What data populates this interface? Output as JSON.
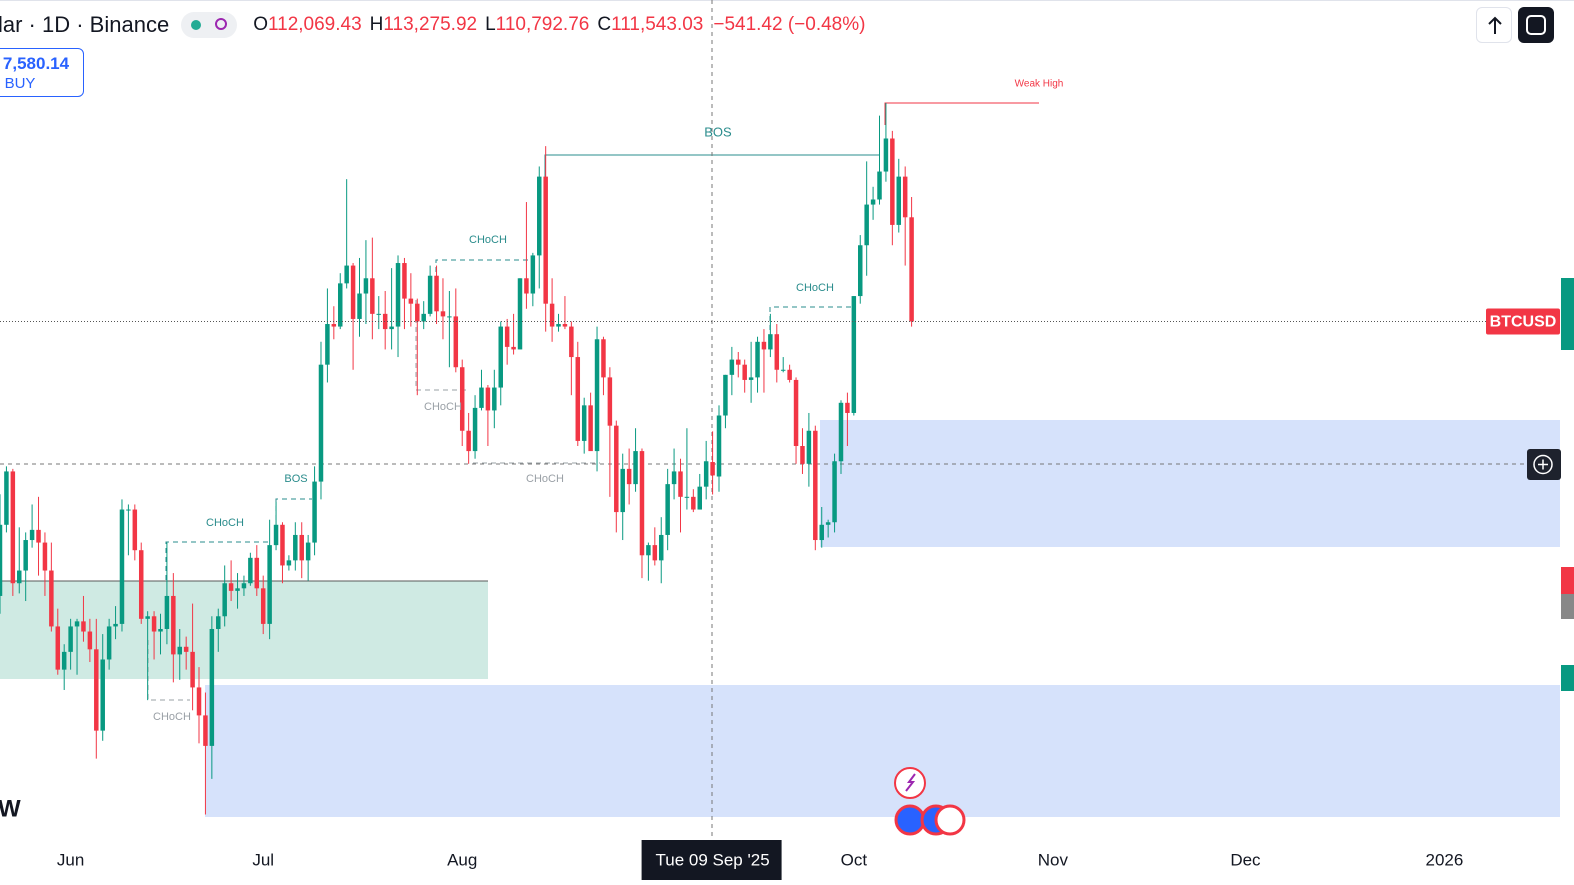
{
  "header": {
    "title": "lar · 1D · Binance",
    "logo": "W",
    "ohlc": [
      {
        "label": "O",
        "value": "112,069.43"
      },
      {
        "label": "H",
        "value": "113,275.92"
      },
      {
        "label": "L",
        "value": "110,792.76"
      },
      {
        "label": "C",
        "value": "111,543.03"
      }
    ],
    "change": "−541.42 (−0.48%)"
  },
  "buy_button": {
    "price": "7,580.14",
    "label": "BUY"
  },
  "chart_data": {
    "type": "candlestick",
    "x": [
      "2025-05-21",
      "2025-05-22",
      "2025-05-23",
      "2025-05-24",
      "2025-05-25",
      "2025-05-26",
      "2025-05-27",
      "2025-05-28",
      "2025-05-29",
      "2025-05-30",
      "2025-05-31",
      "2025-06-01",
      "2025-06-02",
      "2025-06-03",
      "2025-06-04",
      "2025-06-05",
      "2025-06-06",
      "2025-06-07",
      "2025-06-08",
      "2025-06-09",
      "2025-06-10",
      "2025-06-11",
      "2025-06-12",
      "2025-06-13",
      "2025-06-14",
      "2025-06-15",
      "2025-06-16",
      "2025-06-17",
      "2025-06-18",
      "2025-06-19",
      "2025-06-20",
      "2025-06-21",
      "2025-06-22",
      "2025-06-23",
      "2025-06-24",
      "2025-06-25",
      "2025-06-26",
      "2025-06-27",
      "2025-06-28",
      "2025-06-29",
      "2025-06-30",
      "2025-07-01",
      "2025-07-02",
      "2025-07-03",
      "2025-07-04",
      "2025-07-05",
      "2025-07-06",
      "2025-07-07",
      "2025-07-08",
      "2025-07-09",
      "2025-07-10",
      "2025-07-11",
      "2025-07-12",
      "2025-07-13",
      "2025-07-14",
      "2025-07-15",
      "2025-07-16",
      "2025-07-17",
      "2025-07-18",
      "2025-07-19",
      "2025-07-20",
      "2025-07-21",
      "2025-07-22",
      "2025-07-23",
      "2025-07-24",
      "2025-07-25",
      "2025-07-26",
      "2025-07-27",
      "2025-07-28",
      "2025-07-29",
      "2025-07-30",
      "2025-07-31",
      "2025-08-01",
      "2025-08-02",
      "2025-08-03",
      "2025-08-04",
      "2025-08-05",
      "2025-08-06",
      "2025-08-07",
      "2025-08-08",
      "2025-08-09",
      "2025-08-10",
      "2025-08-11",
      "2025-08-12",
      "2025-08-13",
      "2025-08-14",
      "2025-08-15",
      "2025-08-16",
      "2025-08-17",
      "2025-08-18",
      "2025-08-19",
      "2025-08-20",
      "2025-08-21",
      "2025-08-22",
      "2025-08-23",
      "2025-08-24",
      "2025-08-25",
      "2025-08-26",
      "2025-08-27",
      "2025-08-28",
      "2025-08-29",
      "2025-08-30",
      "2025-08-31",
      "2025-09-01",
      "2025-09-02",
      "2025-09-03",
      "2025-09-04",
      "2025-09-05",
      "2025-09-06",
      "2025-09-07",
      "2025-09-08",
      "2025-09-09",
      "2025-09-10",
      "2025-09-11",
      "2025-09-12",
      "2025-09-13",
      "2025-09-14",
      "2025-09-15",
      "2025-09-16",
      "2025-09-17",
      "2025-09-18",
      "2025-09-19",
      "2025-09-20",
      "2025-09-21",
      "2025-09-22",
      "2025-09-23",
      "2025-09-24",
      "2025-09-25",
      "2025-09-26",
      "2025-09-27",
      "2025-09-28",
      "2025-09-29",
      "2025-09-30",
      "2025-10-01",
      "2025-10-02",
      "2025-10-03",
      "2025-10-04",
      "2025-10-05",
      "2025-10-06",
      "2025-10-07",
      "2025-10-08",
      "2025-10-09",
      "2025-10-10"
    ],
    "series": [
      {
        "name": "BTCUSD",
        "up_color": "#089981",
        "down_color": "#f23645",
        "open": [
          106800,
          109600,
          111700,
          107300,
          107800,
          109000,
          109400,
          108900,
          107800,
          105600,
          103900,
          104600,
          105600,
          105800,
          105400,
          104700,
          101500,
          104300,
          105600,
          105700,
          110200,
          110200,
          108600,
          105900,
          106000,
          105400,
          105500,
          106800,
          104500,
          104800,
          104600,
          103200,
          102100,
          100900,
          105500,
          106000,
          107300,
          107000,
          107100,
          107300,
          108300,
          107100,
          105700,
          108800,
          109600,
          108000,
          108200,
          109200,
          108200,
          108900,
          111300,
          115900,
          117500,
          117400,
          119100,
          119800,
          117700,
          118700,
          119300,
          117900,
          117900,
          117300,
          117400,
          119900,
          118500,
          118300,
          117600,
          117900,
          119400,
          118000,
          117800,
          117800,
          115800,
          113300,
          112500,
          114200,
          115000,
          114100,
          115000,
          117400,
          116600,
          116500,
          119300,
          118700,
          120200,
          123300,
          118300,
          117400,
          117500,
          117400,
          116200,
          112900,
          114300,
          112500,
          116900,
          115400,
          113500,
          110100,
          111800,
          111200,
          112500,
          108400,
          108800,
          108200,
          109200,
          111200,
          111700,
          110700,
          110700,
          110200,
          111100,
          112069.43,
          111500,
          113900,
          115500,
          116100,
          115900,
          115300,
          115400,
          116800,
          116500,
          117100,
          115700,
          115700,
          115300,
          112700,
          112000,
          113300,
          109000,
          109600,
          109700,
          112100,
          114400,
          114000,
          118600,
          120600,
          122200,
          122400,
          123500,
          124800,
          121400,
          123300,
          121700
        ],
        "high": [
          110800,
          111900,
          111800,
          109500,
          109300,
          110400,
          110700,
          109300,
          108900,
          106300,
          104900,
          105900,
          105900,
          106800,
          105900,
          105900,
          105300,
          105900,
          106400,
          110600,
          110400,
          110400,
          108900,
          106200,
          106200,
          106100,
          108900,
          107700,
          105500,
          105200,
          106500,
          104000,
          103000,
          106000,
          106300,
          108000,
          108200,
          107700,
          107600,
          108500,
          108800,
          107600,
          109800,
          110500,
          109700,
          108400,
          109700,
          109700,
          109200,
          111900,
          116800,
          118900,
          118200,
          119500,
          123200,
          119900,
          120100,
          120800,
          120900,
          118600,
          118800,
          119700,
          120200,
          120100,
          119500,
          118500,
          118400,
          119800,
          119800,
          119300,
          118800,
          118900,
          116100,
          114000,
          114700,
          115700,
          115100,
          115700,
          117600,
          117700,
          117900,
          119300,
          122300,
          120300,
          123700,
          124500,
          119300,
          117900,
          118600,
          117600,
          116800,
          114600,
          114800,
          117400,
          117000,
          115800,
          113700,
          112400,
          112600,
          113400,
          112600,
          108900,
          109500,
          109900,
          111800,
          112600,
          112200,
          113400,
          111000,
          111600,
          112900,
          113275.92,
          114300,
          115500,
          116600,
          116400,
          116100,
          116800,
          117000,
          117300,
          117900,
          117500,
          116200,
          115900,
          115400,
          113400,
          114000,
          113500,
          110300,
          109800,
          112400,
          114500,
          114800,
          118600,
          121000,
          123900,
          122900,
          125700,
          126200,
          125100,
          124000,
          123700,
          122500
        ],
        "low": [
          106100,
          109300,
          106800,
          106900,
          106600,
          108700,
          107600,
          106800,
          105400,
          103700,
          103100,
          103900,
          103700,
          105000,
          104200,
          100400,
          101100,
          103900,
          105100,
          105400,
          108400,
          108200,
          105700,
          102700,
          104300,
          104500,
          104900,
          103400,
          103500,
          103900,
          102300,
          101000,
          98200,
          99600,
          104600,
          105600,
          106600,
          106300,
          106800,
          107200,
          106800,
          105300,
          105100,
          108600,
          107300,
          107800,
          107800,
          107500,
          107400,
          108400,
          110600,
          115200,
          116900,
          117300,
          118900,
          115700,
          117000,
          117500,
          116900,
          117300,
          116500,
          116500,
          116200,
          117300,
          117400,
          114700,
          117300,
          117800,
          117500,
          116900,
          115800,
          115600,
          112700,
          112000,
          112200,
          114100,
          112700,
          113400,
          114300,
          115900,
          116300,
          116500,
          118100,
          118200,
          118900,
          117200,
          116800,
          117200,
          117300,
          114700,
          112700,
          112400,
          112600,
          111700,
          114700,
          110700,
          109300,
          109000,
          110400,
          110900,
          107500,
          107400,
          108000,
          107300,
          108600,
          110600,
          109300,
          110200,
          110100,
          110200,
          110600,
          110792.76,
          110900,
          113400,
          114700,
          115400,
          114800,
          114400,
          114800,
          114800,
          116200,
          115200,
          115600,
          115200,
          112000,
          111600,
          111100,
          108600,
          108700,
          109100,
          109300,
          111600,
          112700,
          113900,
          118300,
          119400,
          121600,
          122200,
          123100,
          120600,
          121100,
          119800,
          117400
        ],
        "close": [
          109600,
          111700,
          107300,
          107800,
          109000,
          109400,
          108900,
          107800,
          105600,
          103900,
          104600,
          105600,
          105800,
          105400,
          104700,
          101500,
          104300,
          105600,
          105700,
          110200,
          110200,
          108600,
          105900,
          106000,
          105400,
          105500,
          106800,
          104500,
          104800,
          104600,
          103200,
          102100,
          100900,
          105500,
          106000,
          107300,
          107000,
          107100,
          107300,
          108300,
          107100,
          105700,
          108800,
          109600,
          108000,
          108200,
          109200,
          108200,
          108900,
          111300,
          115900,
          117500,
          117400,
          119100,
          119800,
          117700,
          118700,
          119300,
          117900,
          117900,
          117300,
          117400,
          119900,
          118500,
          118300,
          117600,
          117900,
          119400,
          118000,
          117800,
          117800,
          115800,
          113300,
          112500,
          114200,
          115000,
          114100,
          115000,
          117400,
          116600,
          116500,
          119300,
          118700,
          120200,
          123300,
          118300,
          117400,
          117500,
          117400,
          116200,
          112900,
          114300,
          112500,
          116900,
          115400,
          113500,
          110100,
          111800,
          111200,
          112500,
          108400,
          108800,
          108200,
          109200,
          111200,
          111700,
          110700,
          110700,
          110200,
          111100,
          112100,
          111543.03,
          113900,
          115500,
          116100,
          115900,
          115300,
          115400,
          116800,
          116500,
          117100,
          115700,
          115700,
          115300,
          112700,
          112000,
          113300,
          109000,
          109600,
          109700,
          112100,
          114400,
          114000,
          118600,
          120600,
          122200,
          122400,
          123500,
          124800,
          121400,
          123300,
          121700,
          117600
        ]
      }
    ],
    "xlim": [
      "2025-05-21",
      "2026-01-19"
    ],
    "xticks": [
      {
        "value": "2025-06-01",
        "label": "Jun"
      },
      {
        "value": "2025-07-01",
        "label": "Jul"
      },
      {
        "value": "2025-08-01",
        "label": "Aug"
      },
      {
        "value": "2025-10-01",
        "label": "Oct"
      },
      {
        "value": "2025-11-01",
        "label": "Nov"
      },
      {
        "value": "2025-12-01",
        "label": "Dec"
      },
      {
        "value": "2026-01-01",
        "label": "2026"
      }
    ],
    "ylim": [
      97000,
      130250
    ],
    "crosshair": {
      "x": "2025-09-09",
      "label": "Tue 09 Sep '25"
    },
    "annotations": [
      "Weak High",
      "BOS",
      "CHoCH",
      "CHoCH",
      "CHoCH",
      "CHoCH",
      "BOS",
      "CHoCH",
      "CHoCH"
    ]
  }
}
